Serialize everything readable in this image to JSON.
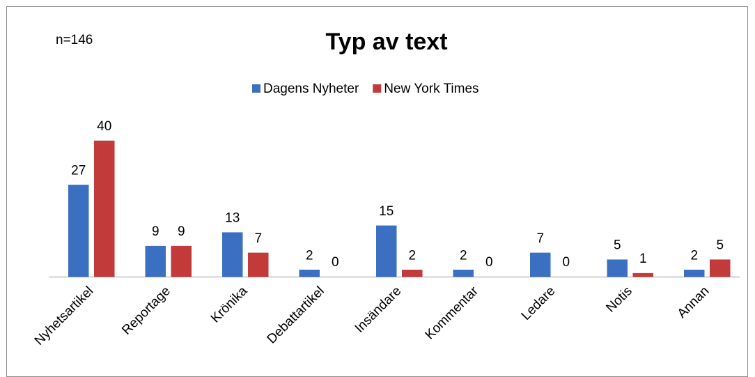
{
  "chart_data": {
    "type": "bar",
    "title": "Typ av text",
    "annotation": "n=146",
    "categories": [
      "Nyhetsartikel",
      "Reportage",
      "Krönika",
      "Debattartikel",
      "Insändare",
      "Kommentar",
      "Ledare",
      "Notis",
      "Annan"
    ],
    "series": [
      {
        "name": "Dagens Nyheter",
        "color": "#3b6fc2",
        "values": [
          27,
          9,
          13,
          2,
          15,
          2,
          7,
          5,
          2
        ]
      },
      {
        "name": "New York Times",
        "color": "#c23a3a",
        "values": [
          40,
          9,
          7,
          0,
          2,
          0,
          0,
          1,
          5
        ]
      }
    ],
    "legend": "top"
  }
}
